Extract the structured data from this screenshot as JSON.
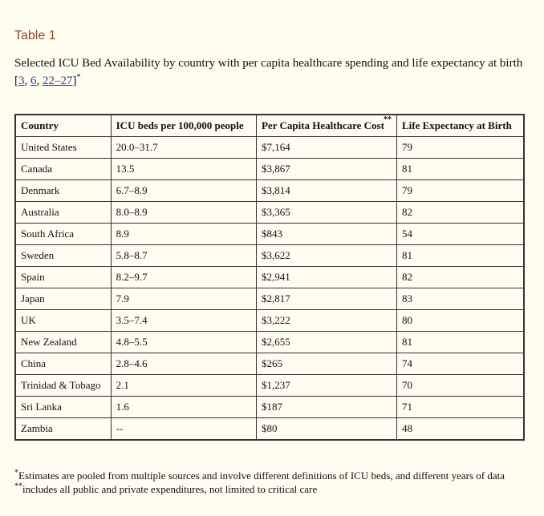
{
  "header": {
    "title": "Table 1"
  },
  "caption": {
    "text": "Selected ICU Bed Availability by country with per capita healthcare spending and life expectancy at birth [",
    "refs": [
      "3",
      "6",
      "22–27"
    ],
    "separator": ", ",
    "close": "]",
    "mark": "*"
  },
  "table": {
    "columns": [
      {
        "text": "Country"
      },
      {
        "text": "ICU beds per 100,000 people"
      },
      {
        "text": "Per Capita Healthcare Cost",
        "note": "**"
      },
      {
        "text": "Life Expectancy at Birth"
      }
    ],
    "rows": [
      [
        "United States",
        "20.0–31.7",
        "$7,164",
        "79"
      ],
      [
        "Canada",
        "13.5",
        "$3,867",
        "81"
      ],
      [
        "Denmark",
        "6.7–8.9",
        "$3,814",
        "79"
      ],
      [
        "Australia",
        "8.0–8.9",
        "$3,365",
        "82"
      ],
      [
        "South Africa",
        "8.9",
        "$843",
        "54"
      ],
      [
        "Sweden",
        "5.8–8.7",
        "$3,622",
        "81"
      ],
      [
        "Spain",
        "8.2–9.7",
        "$2,941",
        "82"
      ],
      [
        "Japan",
        "7.9",
        "$2,817",
        "83"
      ],
      [
        "UK",
        "3.5–7.4",
        "$3,222",
        "80"
      ],
      [
        "New Zealand",
        "4.8–5.5",
        "$2,655",
        "81"
      ],
      [
        "China",
        "2.8–4.6",
        "$265",
        "74"
      ],
      [
        "Trinidad & Tobago",
        "2.1",
        "$1,237",
        "70"
      ],
      [
        "Sri Lanka",
        "1.6",
        "$187",
        "71"
      ],
      [
        "Zambia",
        "--",
        "$80",
        "48"
      ]
    ]
  },
  "footnotes": [
    {
      "mark": "*",
      "text": "Estimates are pooled from multiple sources and involve different definitions of ICU beds, and different years of data"
    },
    {
      "mark": "**",
      "text": "includes all public and private expenditures, not limited to critical care"
    }
  ]
}
